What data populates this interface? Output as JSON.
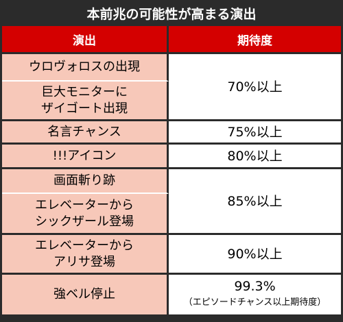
{
  "title": "本前兆の可能性が高まる演出",
  "table": {
    "headers": [
      "演出",
      "期待度"
    ],
    "rows": [
      {
        "effect": "ウロヴォロスの出現"
      },
      {
        "effect": "巨大モニターに\nザイゴート出現"
      },
      {
        "effect": "名言チャンス"
      },
      {
        "effect": "!!!アイコン"
      },
      {
        "effect": "画面斬り跡"
      },
      {
        "effect": "エレベーターから\nシックザール登場"
      },
      {
        "effect": "エレベーターから\nアリサ登場"
      },
      {
        "effect": "強ベル停止"
      }
    ],
    "probabilities": [
      "70%以上",
      "75%以上",
      "80%以上",
      "85%以上",
      "90%以上",
      "99.3%"
    ],
    "note": "（エピソードチャンス以上期待度）"
  }
}
